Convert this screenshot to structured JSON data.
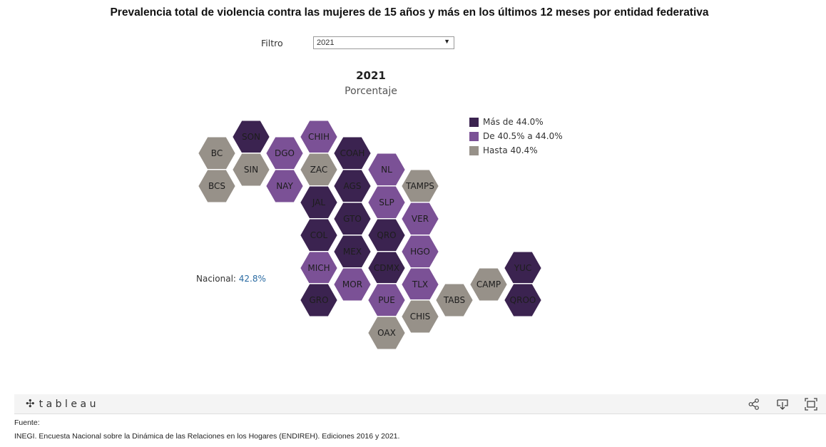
{
  "title": "Prevalencia total de violencia contra las mujeres de 15 años y más en los últimos 12 meses por entidad federativa",
  "filter": {
    "label": "Filtro",
    "value": "2021"
  },
  "map": {
    "year": "2021",
    "subtitle": "Porcentaje",
    "national_label": "Nacional:",
    "national_value": "42.8%"
  },
  "legend": [
    {
      "label": "Más de 44.0%",
      "color": "#3b2350"
    },
    {
      "label": "De 40.5% a 44.0%",
      "color": "#7b5196"
    },
    {
      "label": "Hasta 40.4%",
      "color": "#979189"
    }
  ],
  "states": [
    {
      "abbr": "SON",
      "class": 0
    },
    {
      "abbr": "CHIH",
      "class": 1
    },
    {
      "abbr": "BC",
      "class": 2
    },
    {
      "abbr": "DGO",
      "class": 1
    },
    {
      "abbr": "COAH",
      "class": 0
    },
    {
      "abbr": "SIN",
      "class": 2
    },
    {
      "abbr": "ZAC",
      "class": 2
    },
    {
      "abbr": "NL",
      "class": 1
    },
    {
      "abbr": "BCS",
      "class": 2
    },
    {
      "abbr": "NAY",
      "class": 1
    },
    {
      "abbr": "AGS",
      "class": 0
    },
    {
      "abbr": "TAMPS",
      "class": 2
    },
    {
      "abbr": "JAL",
      "class": 0
    },
    {
      "abbr": "SLP",
      "class": 1
    },
    {
      "abbr": "GTO",
      "class": 0
    },
    {
      "abbr": "VER",
      "class": 1
    },
    {
      "abbr": "COL",
      "class": 0
    },
    {
      "abbr": "QRO",
      "class": 0
    },
    {
      "abbr": "MEX",
      "class": 0
    },
    {
      "abbr": "HGO",
      "class": 1
    },
    {
      "abbr": "MICH",
      "class": 1
    },
    {
      "abbr": "CDMX",
      "class": 0
    },
    {
      "abbr": "YUC",
      "class": 0
    },
    {
      "abbr": "MOR",
      "class": 1
    },
    {
      "abbr": "TLX",
      "class": 1
    },
    {
      "abbr": "CAMP",
      "class": 2
    },
    {
      "abbr": "GRO",
      "class": 0
    },
    {
      "abbr": "PUE",
      "class": 1
    },
    {
      "abbr": "TABS",
      "class": 2
    },
    {
      "abbr": "QROO",
      "class": 0
    },
    {
      "abbr": "CHIS",
      "class": 2
    },
    {
      "abbr": "OAX",
      "class": 2
    }
  ],
  "toolbar": {
    "logo_text": "tableau",
    "share_icon": "share-icon",
    "download_icon": "download-icon",
    "fullscreen_icon": "fullscreen-icon"
  },
  "source": {
    "label": "Fuente:",
    "text": "INEGI. Encuesta Nacional sobre la Dinámica de las Relaciones en los Hogares (ENDIREH). Ediciones 2016 y 2021."
  }
}
